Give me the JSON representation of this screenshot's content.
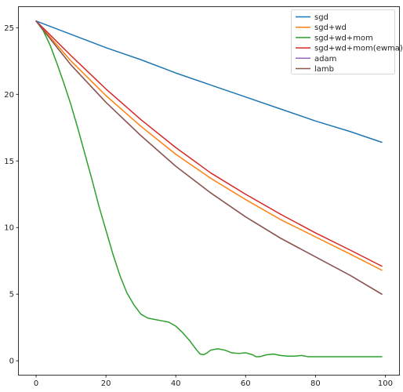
{
  "chart_data": {
    "type": "line",
    "title": "",
    "xlabel": "",
    "ylabel": "",
    "xlim": [
      -4.95,
      103.95
    ],
    "ylim": [
      -1.05,
      26.55
    ],
    "xticks": [
      0,
      20,
      40,
      60,
      80,
      100
    ],
    "yticks": [
      0,
      5,
      10,
      15,
      20,
      25
    ],
    "xtick_labels": [
      "0",
      "20",
      "40",
      "60",
      "80",
      "100"
    ],
    "ytick_labels": [
      "0",
      "5",
      "10",
      "15",
      "20",
      "25"
    ],
    "grid": false,
    "legend_position": "top-right",
    "series": [
      {
        "name": "sgd",
        "color": "#1f77b4",
        "x": [
          0,
          10,
          20,
          30,
          40,
          50,
          60,
          70,
          80,
          90,
          99
        ],
        "y": [
          25.5,
          24.5,
          23.5,
          22.6,
          21.6,
          20.7,
          19.8,
          18.9,
          18.0,
          17.2,
          16.4
        ]
      },
      {
        "name": "sgd+wd",
        "color": "#ff7f0e",
        "x": [
          0,
          10,
          20,
          30,
          40,
          50,
          60,
          70,
          80,
          90,
          99
        ],
        "y": [
          25.5,
          22.5,
          19.9,
          17.6,
          15.5,
          13.7,
          12.1,
          10.6,
          9.3,
          8.0,
          6.8
        ]
      },
      {
        "name": "sgd+wd+mom",
        "color": "#2ca02c",
        "x": [
          0,
          2,
          4,
          6,
          8,
          10,
          12,
          14,
          16,
          18,
          20,
          22,
          24,
          26,
          28,
          30,
          32,
          34,
          36,
          38,
          40,
          42,
          44,
          46,
          47,
          48,
          49,
          50,
          52,
          54,
          56,
          58,
          60,
          62,
          63,
          64,
          66,
          68,
          70,
          72,
          74,
          76,
          78,
          80,
          85,
          90,
          95,
          99
        ],
        "y": [
          25.5,
          24.8,
          23.7,
          22.3,
          20.8,
          19.2,
          17.4,
          15.5,
          13.6,
          11.6,
          9.8,
          8.0,
          6.4,
          5.1,
          4.2,
          3.5,
          3.2,
          3.1,
          3.0,
          2.9,
          2.6,
          2.1,
          1.5,
          0.8,
          0.5,
          0.45,
          0.6,
          0.8,
          0.9,
          0.8,
          0.6,
          0.55,
          0.6,
          0.45,
          0.3,
          0.3,
          0.45,
          0.5,
          0.4,
          0.35,
          0.35,
          0.4,
          0.3,
          0.3,
          0.3,
          0.3,
          0.3,
          0.3
        ]
      },
      {
        "name": "sgd+wd+mom(ewma)",
        "color": "#d62728",
        "x": [
          0,
          10,
          20,
          30,
          40,
          50,
          60,
          70,
          80,
          90,
          99
        ],
        "y": [
          25.5,
          22.9,
          20.4,
          18.1,
          16.0,
          14.1,
          12.5,
          11.0,
          9.6,
          8.3,
          7.1
        ]
      },
      {
        "name": "adam",
        "color": "#9467bd",
        "x": [
          0,
          10,
          20,
          30,
          40,
          50,
          60,
          70,
          80,
          90,
          99
        ],
        "y": [
          25.5,
          22.2,
          19.4,
          16.9,
          14.6,
          12.6,
          10.8,
          9.2,
          7.8,
          6.4,
          5.0
        ]
      },
      {
        "name": "lamb",
        "color": "#8c564b",
        "x": [
          0,
          10,
          20,
          30,
          40,
          50,
          60,
          70,
          80,
          90,
          99
        ],
        "y": [
          25.5,
          22.2,
          19.4,
          16.9,
          14.6,
          12.6,
          10.8,
          9.2,
          7.8,
          6.4,
          5.0
        ]
      }
    ]
  }
}
